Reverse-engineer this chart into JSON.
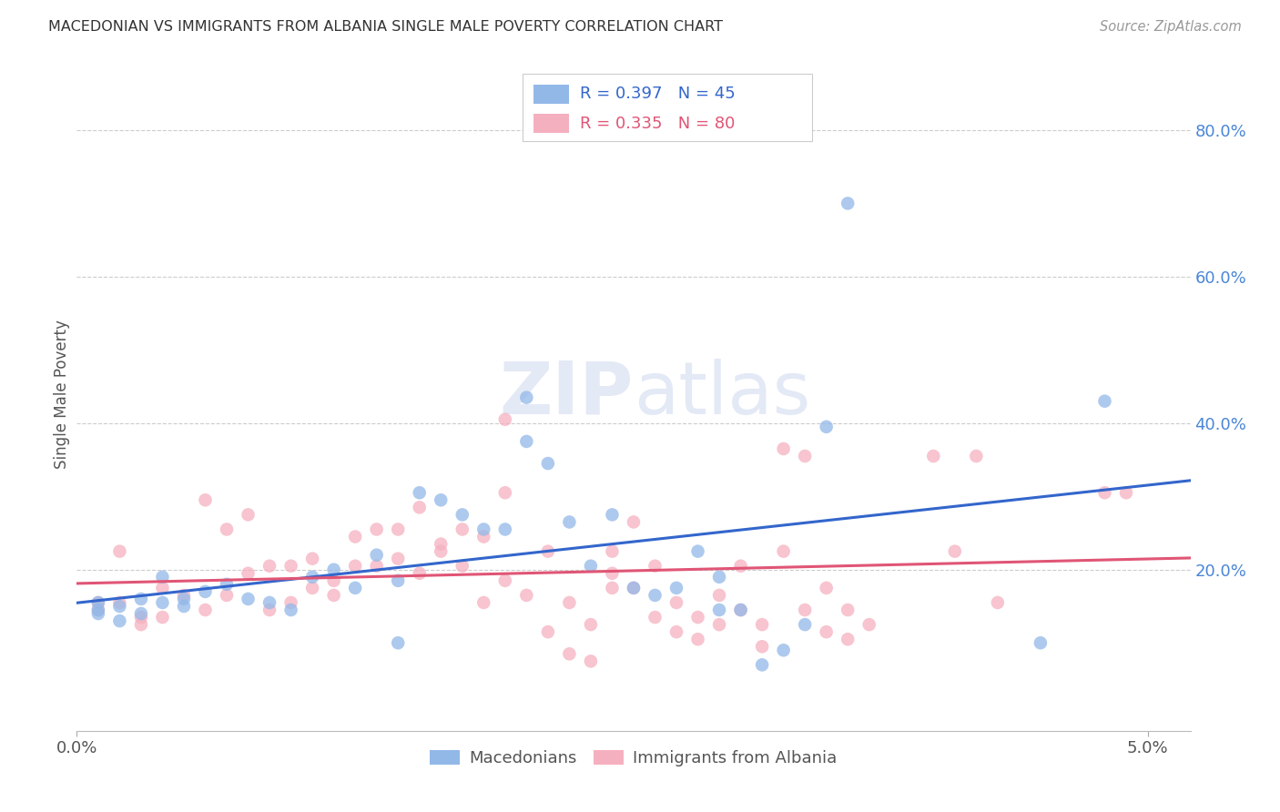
{
  "title": "MACEDONIAN VS IMMIGRANTS FROM ALBANIA SINGLE MALE POVERTY CORRELATION CHART",
  "source": "Source: ZipAtlas.com",
  "ylabel": "Single Male Poverty",
  "right_yticks": [
    "80.0%",
    "60.0%",
    "40.0%",
    "20.0%"
  ],
  "right_ytick_vals": [
    0.8,
    0.6,
    0.4,
    0.2
  ],
  "macedonian_color": "#92b8e8",
  "albania_color": "#f5b0c0",
  "line_macedonian_color": "#3366cc",
  "line_albania_color": "#e05575",
  "background_color": "#ffffff",
  "grid_color": "#cccccc",
  "xlim": [
    0.0,
    0.052
  ],
  "ylim": [
    -0.02,
    0.9
  ],
  "macedonian_points": [
    [
      0.001,
      0.155
    ],
    [
      0.001,
      0.145
    ],
    [
      0.001,
      0.14
    ],
    [
      0.002,
      0.15
    ],
    [
      0.002,
      0.13
    ],
    [
      0.003,
      0.16
    ],
    [
      0.003,
      0.14
    ],
    [
      0.004,
      0.155
    ],
    [
      0.004,
      0.19
    ],
    [
      0.005,
      0.16
    ],
    [
      0.005,
      0.15
    ],
    [
      0.006,
      0.17
    ],
    [
      0.007,
      0.18
    ],
    [
      0.008,
      0.16
    ],
    [
      0.009,
      0.155
    ],
    [
      0.01,
      0.145
    ],
    [
      0.011,
      0.19
    ],
    [
      0.012,
      0.2
    ],
    [
      0.013,
      0.175
    ],
    [
      0.014,
      0.22
    ],
    [
      0.015,
      0.185
    ],
    [
      0.015,
      0.1
    ],
    [
      0.016,
      0.305
    ],
    [
      0.017,
      0.295
    ],
    [
      0.018,
      0.275
    ],
    [
      0.019,
      0.255
    ],
    [
      0.02,
      0.255
    ],
    [
      0.021,
      0.375
    ],
    [
      0.021,
      0.435
    ],
    [
      0.022,
      0.345
    ],
    [
      0.023,
      0.265
    ],
    [
      0.024,
      0.205
    ],
    [
      0.025,
      0.275
    ],
    [
      0.026,
      0.175
    ],
    [
      0.027,
      0.165
    ],
    [
      0.028,
      0.175
    ],
    [
      0.029,
      0.225
    ],
    [
      0.03,
      0.145
    ],
    [
      0.03,
      0.19
    ],
    [
      0.031,
      0.145
    ],
    [
      0.032,
      0.07
    ],
    [
      0.033,
      0.09
    ],
    [
      0.034,
      0.125
    ],
    [
      0.035,
      0.395
    ],
    [
      0.036,
      0.7
    ],
    [
      0.045,
      0.1
    ],
    [
      0.048,
      0.43
    ]
  ],
  "albania_points": [
    [
      0.001,
      0.145
    ],
    [
      0.001,
      0.155
    ],
    [
      0.002,
      0.225
    ],
    [
      0.002,
      0.155
    ],
    [
      0.003,
      0.135
    ],
    [
      0.003,
      0.125
    ],
    [
      0.004,
      0.175
    ],
    [
      0.004,
      0.135
    ],
    [
      0.005,
      0.165
    ],
    [
      0.006,
      0.295
    ],
    [
      0.006,
      0.145
    ],
    [
      0.007,
      0.255
    ],
    [
      0.007,
      0.165
    ],
    [
      0.008,
      0.275
    ],
    [
      0.008,
      0.195
    ],
    [
      0.009,
      0.145
    ],
    [
      0.009,
      0.205
    ],
    [
      0.01,
      0.205
    ],
    [
      0.01,
      0.155
    ],
    [
      0.011,
      0.215
    ],
    [
      0.011,
      0.175
    ],
    [
      0.012,
      0.185
    ],
    [
      0.012,
      0.165
    ],
    [
      0.013,
      0.245
    ],
    [
      0.013,
      0.205
    ],
    [
      0.014,
      0.205
    ],
    [
      0.014,
      0.255
    ],
    [
      0.015,
      0.215
    ],
    [
      0.015,
      0.255
    ],
    [
      0.016,
      0.195
    ],
    [
      0.016,
      0.285
    ],
    [
      0.017,
      0.235
    ],
    [
      0.017,
      0.225
    ],
    [
      0.018,
      0.255
    ],
    [
      0.018,
      0.205
    ],
    [
      0.019,
      0.155
    ],
    [
      0.019,
      0.245
    ],
    [
      0.02,
      0.185
    ],
    [
      0.02,
      0.305
    ],
    [
      0.02,
      0.405
    ],
    [
      0.021,
      0.165
    ],
    [
      0.022,
      0.225
    ],
    [
      0.022,
      0.115
    ],
    [
      0.023,
      0.155
    ],
    [
      0.023,
      0.085
    ],
    [
      0.024,
      0.125
    ],
    [
      0.024,
      0.075
    ],
    [
      0.025,
      0.195
    ],
    [
      0.025,
      0.175
    ],
    [
      0.025,
      0.225
    ],
    [
      0.026,
      0.265
    ],
    [
      0.026,
      0.175
    ],
    [
      0.027,
      0.205
    ],
    [
      0.027,
      0.135
    ],
    [
      0.028,
      0.155
    ],
    [
      0.028,
      0.115
    ],
    [
      0.029,
      0.135
    ],
    [
      0.029,
      0.105
    ],
    [
      0.03,
      0.125
    ],
    [
      0.03,
      0.165
    ],
    [
      0.031,
      0.205
    ],
    [
      0.031,
      0.145
    ],
    [
      0.032,
      0.095
    ],
    [
      0.032,
      0.125
    ],
    [
      0.033,
      0.225
    ],
    [
      0.033,
      0.365
    ],
    [
      0.034,
      0.145
    ],
    [
      0.034,
      0.355
    ],
    [
      0.035,
      0.175
    ],
    [
      0.035,
      0.115
    ],
    [
      0.036,
      0.105
    ],
    [
      0.036,
      0.145
    ],
    [
      0.037,
      0.125
    ],
    [
      0.04,
      0.355
    ],
    [
      0.041,
      0.225
    ],
    [
      0.042,
      0.355
    ],
    [
      0.043,
      0.155
    ],
    [
      0.048,
      0.305
    ],
    [
      0.049,
      0.305
    ]
  ]
}
